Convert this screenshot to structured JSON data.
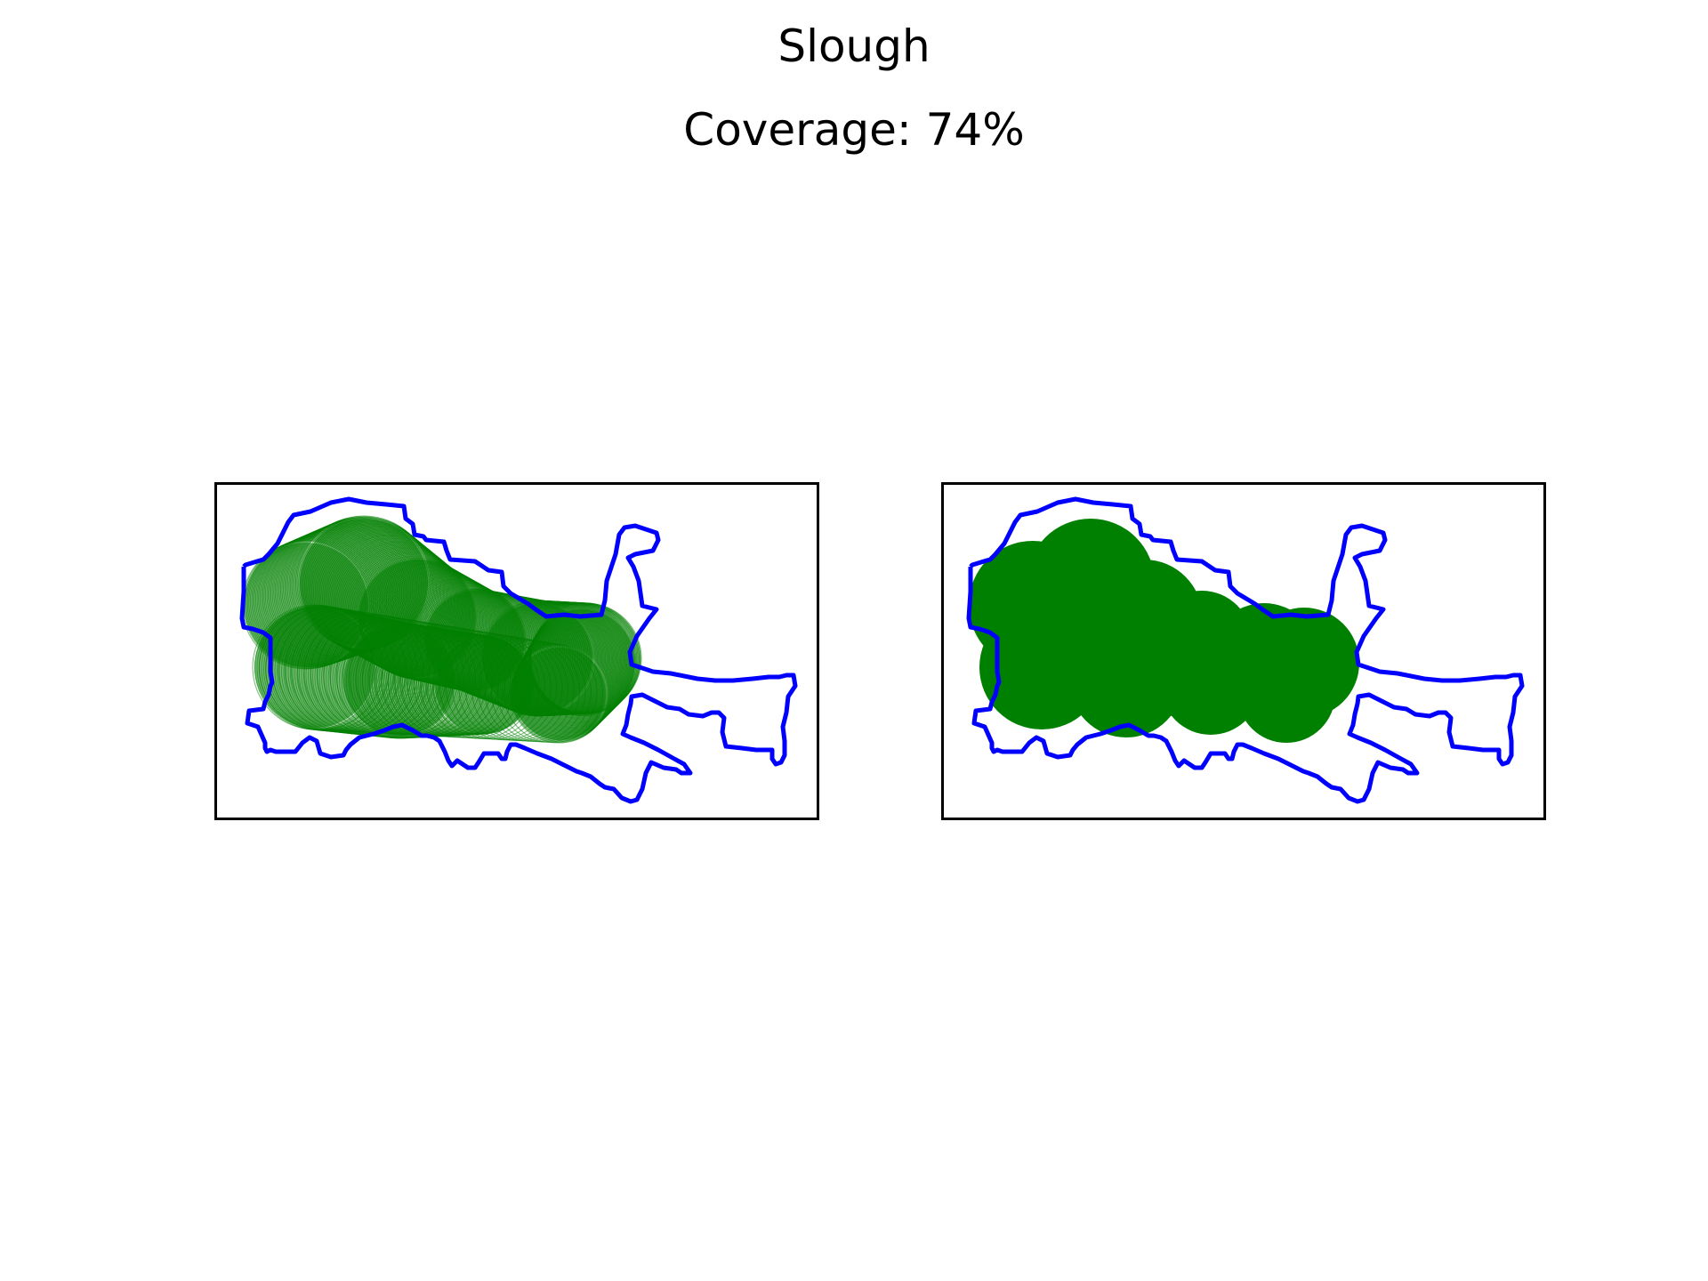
{
  "figure": {
    "title": "Slough",
    "subtitle": "Coverage: 74%"
  },
  "colors": {
    "boundary": "#0000ff",
    "coverage": "#008000",
    "frame": "#000000",
    "background": "#ffffff"
  },
  "panels": [
    {
      "style": "overlapping-circles"
    },
    {
      "style": "merged-union"
    }
  ]
}
